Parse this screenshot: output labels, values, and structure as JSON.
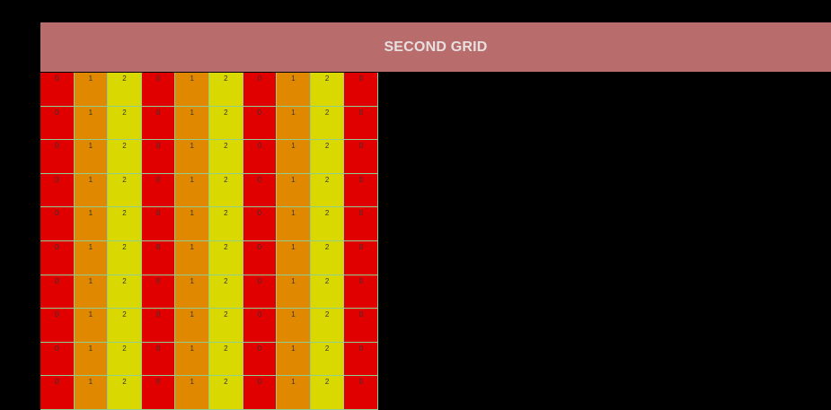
{
  "header": {
    "title": "SECOND GRID"
  },
  "colors": {
    "background": "#000000",
    "header_bg": "#b86c6c",
    "header_text": "#e6e0e0",
    "cell_0": "#e00000",
    "cell_1": "#e08800",
    "cell_2": "#d9d800",
    "cell_border": "#8fcf8f"
  },
  "grid": {
    "rows": [
      [
        "0",
        "1",
        "2",
        "0",
        "1",
        "2",
        "0",
        "1",
        "2",
        "0"
      ],
      [
        "0",
        "1",
        "2",
        "0",
        "1",
        "2",
        "0",
        "1",
        "2",
        "0"
      ],
      [
        "0",
        "1",
        "2",
        "0",
        "1",
        "2",
        "0",
        "1",
        "2",
        "0"
      ],
      [
        "0",
        "1",
        "2",
        "0",
        "1",
        "2",
        "0",
        "1",
        "2",
        "0"
      ],
      [
        "0",
        "1",
        "2",
        "0",
        "1",
        "2",
        "0",
        "1",
        "2",
        "0"
      ],
      [
        "0",
        "1",
        "2",
        "0",
        "1",
        "2",
        "0",
        "1",
        "2",
        "0"
      ],
      [
        "0",
        "1",
        "2",
        "0",
        "1",
        "2",
        "0",
        "1",
        "2",
        "0"
      ],
      [
        "0",
        "1",
        "2",
        "0",
        "1",
        "2",
        "0",
        "1",
        "2",
        "0"
      ],
      [
        "0",
        "1",
        "2",
        "0",
        "1",
        "2",
        "0",
        "1",
        "2",
        "0"
      ],
      [
        "0",
        "1",
        "2",
        "0",
        "1",
        "2",
        "0",
        "1",
        "2",
        "0"
      ]
    ]
  }
}
